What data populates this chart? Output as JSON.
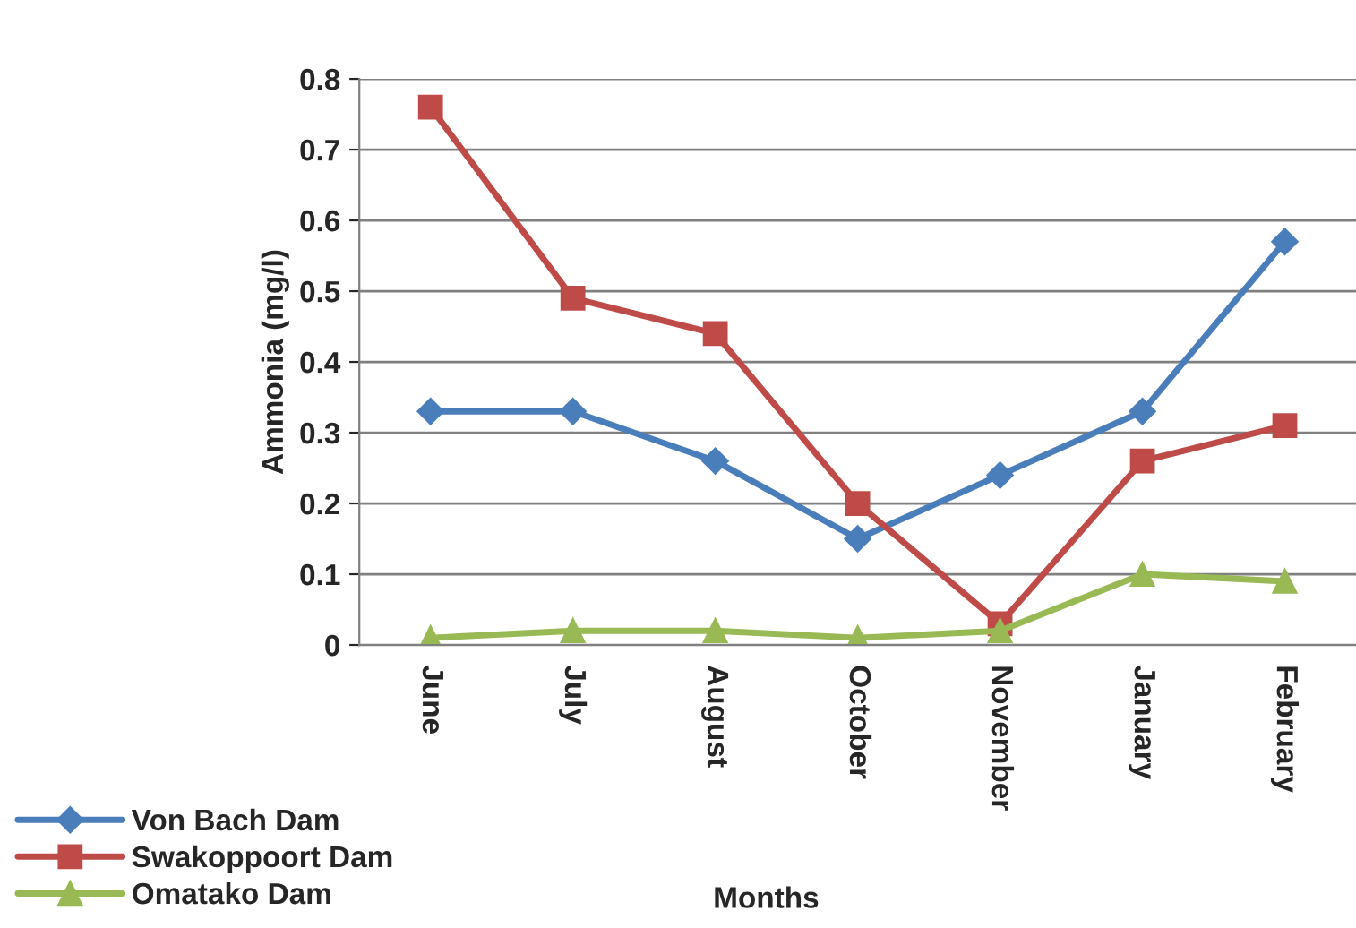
{
  "chart_data": {
    "type": "line",
    "xlabel": "Months",
    "ylabel": "Ammonia (mg/l)",
    "categories": [
      "June",
      "July",
      "August",
      "October",
      "November",
      "January",
      "February"
    ],
    "series": [
      {
        "name": "Von Bach Dam",
        "color": "#4a7ebb",
        "marker": "diamond",
        "values": [
          0.33,
          0.33,
          0.26,
          0.15,
          0.24,
          0.33,
          0.57
        ]
      },
      {
        "name": "Swakoppoort Dam",
        "color": "#be4b48",
        "marker": "square",
        "values": [
          0.76,
          0.49,
          0.44,
          0.2,
          0.03,
          0.26,
          0.31
        ]
      },
      {
        "name": "Omatako Dam",
        "color": "#98b954",
        "marker": "triangle",
        "values": [
          0.01,
          0.02,
          0.02,
          0.01,
          0.02,
          0.1,
          0.09
        ]
      }
    ],
    "ylim": [
      0,
      0.8
    ],
    "yticks": [
      0,
      0.1,
      0.2,
      0.3,
      0.4,
      0.5,
      0.6,
      0.7,
      0.8
    ],
    "grid": "y",
    "legend": "bottom left",
    "line_style": "solid"
  }
}
